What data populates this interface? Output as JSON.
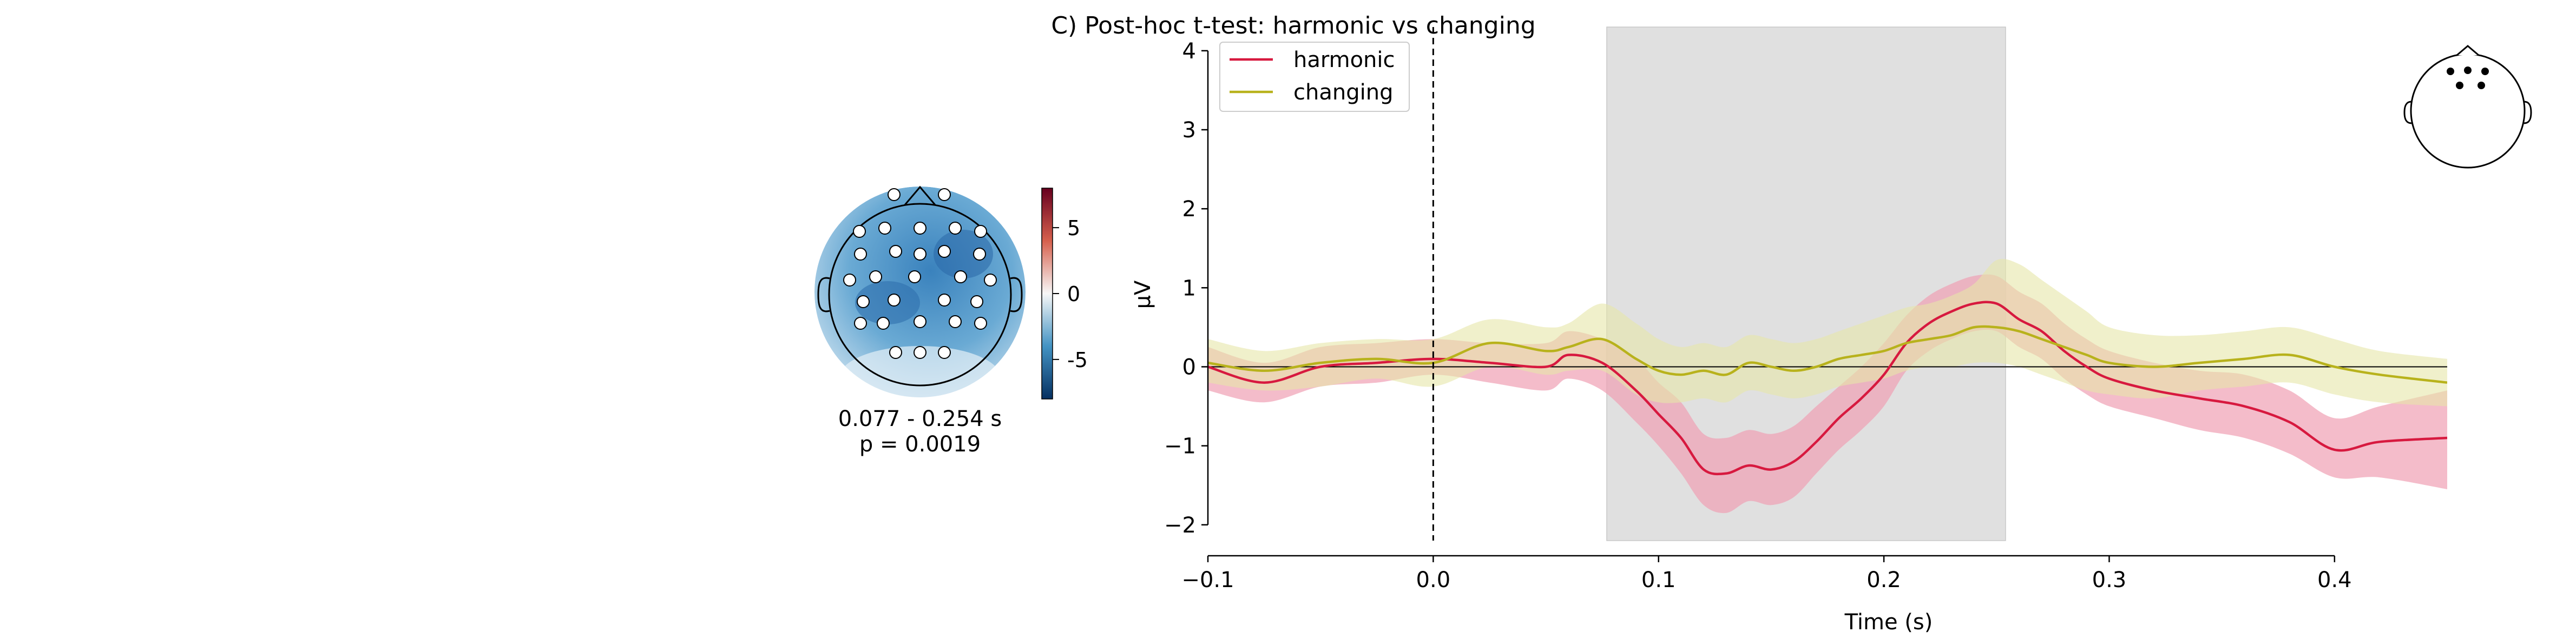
{
  "title": "C) Post-hoc t-test: harmonic vs changing",
  "colors": {
    "harmonic": "#d7193f",
    "harmonic_band": "#f0a0b4",
    "changing": "#b8b21c",
    "changing_band": "#e6e6a8",
    "shade": "#e0e0e0",
    "cmap_neg": "#2166ac",
    "cmap_pos": "#b2182b"
  },
  "topomap": {
    "time_window": "0.077 - 0.254 s",
    "p_value": "p = 0.0019",
    "colorbar": {
      "ticks": [
        5,
        0,
        -5
      ],
      "tick_labels": [
        "5",
        "0",
        "-5"
      ],
      "range": [
        -8,
        8
      ]
    }
  },
  "head_inset": {
    "sensor_count": 5
  },
  "chart_data": {
    "type": "line",
    "title": "C) Post-hoc t-test: harmonic vs changing",
    "xlabel": "Time (s)",
    "ylabel": "µV",
    "xlim": [
      -0.1,
      0.45
    ],
    "ylim": [
      -2.2,
      4.3
    ],
    "xticks": [
      -0.1,
      0.0,
      0.1,
      0.2,
      0.3,
      0.4
    ],
    "xtick_labels": [
      "−0.1",
      "0.0",
      "0.1",
      "0.2",
      "0.3",
      "0.4"
    ],
    "yticks": [
      -2,
      -1,
      0,
      1,
      2,
      3,
      4
    ],
    "ytick_labels": [
      "−2",
      "−1",
      "0",
      "1",
      "2",
      "3",
      "4"
    ],
    "legend": {
      "placement": "top-left",
      "entries": [
        "harmonic",
        "changing"
      ]
    },
    "shaded_window": [
      0.077,
      0.254
    ],
    "vline_x": 0.0,
    "hline_y": 0,
    "x": [
      -0.1,
      -0.075,
      -0.05,
      -0.025,
      0.0,
      0.025,
      0.05,
      0.06,
      0.075,
      0.09,
      0.1,
      0.11,
      0.12,
      0.13,
      0.14,
      0.15,
      0.16,
      0.17,
      0.18,
      0.19,
      0.2,
      0.21,
      0.22,
      0.23,
      0.24,
      0.25,
      0.26,
      0.27,
      0.28,
      0.29,
      0.3,
      0.32,
      0.34,
      0.36,
      0.38,
      0.4,
      0.42,
      0.45
    ],
    "series": [
      {
        "name": "harmonic",
        "values": [
          0.0,
          -0.2,
          0.0,
          0.05,
          0.1,
          0.05,
          0.0,
          0.15,
          0.05,
          -0.3,
          -0.6,
          -0.9,
          -1.3,
          -1.35,
          -1.25,
          -1.3,
          -1.2,
          -0.95,
          -0.65,
          -0.4,
          -0.1,
          0.3,
          0.55,
          0.7,
          0.8,
          0.8,
          0.6,
          0.45,
          0.2,
          0.0,
          -0.15,
          -0.3,
          -0.4,
          -0.5,
          -0.7,
          -1.05,
          -0.95,
          -0.9
        ],
        "lower": [
          -0.3,
          -0.45,
          -0.25,
          -0.2,
          -0.1,
          -0.2,
          -0.3,
          -0.15,
          -0.3,
          -0.7,
          -1.0,
          -1.35,
          -1.75,
          -1.85,
          -1.7,
          -1.75,
          -1.65,
          -1.35,
          -1.05,
          -0.8,
          -0.5,
          -0.05,
          0.2,
          0.35,
          0.45,
          0.45,
          0.25,
          0.1,
          -0.15,
          -0.35,
          -0.5,
          -0.65,
          -0.8,
          -0.9,
          -1.1,
          -1.4,
          -1.4,
          -1.55
        ],
        "upper": [
          0.25,
          0.05,
          0.25,
          0.3,
          0.35,
          0.3,
          0.3,
          0.45,
          0.35,
          0.1,
          -0.2,
          -0.45,
          -0.85,
          -0.9,
          -0.8,
          -0.85,
          -0.75,
          -0.5,
          -0.25,
          0.0,
          0.3,
          0.65,
          0.9,
          1.05,
          1.15,
          1.15,
          0.95,
          0.8,
          0.55,
          0.35,
          0.2,
          0.05,
          -0.05,
          -0.1,
          -0.3,
          -0.65,
          -0.5,
          -0.3
        ]
      },
      {
        "name": "changing",
        "values": [
          0.05,
          -0.05,
          0.05,
          0.1,
          0.05,
          0.3,
          0.2,
          0.25,
          0.35,
          0.1,
          -0.05,
          -0.1,
          -0.05,
          -0.1,
          0.05,
          0.0,
          -0.05,
          0.0,
          0.1,
          0.15,
          0.2,
          0.3,
          0.35,
          0.4,
          0.5,
          0.5,
          0.45,
          0.35,
          0.25,
          0.15,
          0.05,
          0.0,
          0.05,
          0.1,
          0.15,
          0.0,
          -0.1,
          -0.2
        ],
        "lower": [
          -0.2,
          -0.3,
          -0.25,
          -0.15,
          -0.25,
          0.0,
          -0.1,
          -0.05,
          -0.05,
          -0.35,
          -0.45,
          -0.45,
          -0.4,
          -0.45,
          -0.3,
          -0.35,
          -0.4,
          -0.35,
          -0.25,
          -0.2,
          -0.15,
          -0.05,
          0.0,
          0.0,
          0.05,
          0.05,
          0.0,
          -0.1,
          -0.2,
          -0.3,
          -0.35,
          -0.4,
          -0.3,
          -0.25,
          -0.2,
          -0.35,
          -0.45,
          -0.5
        ],
        "upper": [
          0.35,
          0.2,
          0.3,
          0.35,
          0.35,
          0.6,
          0.5,
          0.55,
          0.8,
          0.55,
          0.35,
          0.25,
          0.3,
          0.25,
          0.4,
          0.35,
          0.3,
          0.35,
          0.45,
          0.55,
          0.65,
          0.75,
          0.8,
          0.9,
          1.05,
          1.35,
          1.3,
          1.1,
          0.9,
          0.7,
          0.5,
          0.4,
          0.4,
          0.45,
          0.5,
          0.35,
          0.2,
          0.1
        ]
      }
    ]
  }
}
